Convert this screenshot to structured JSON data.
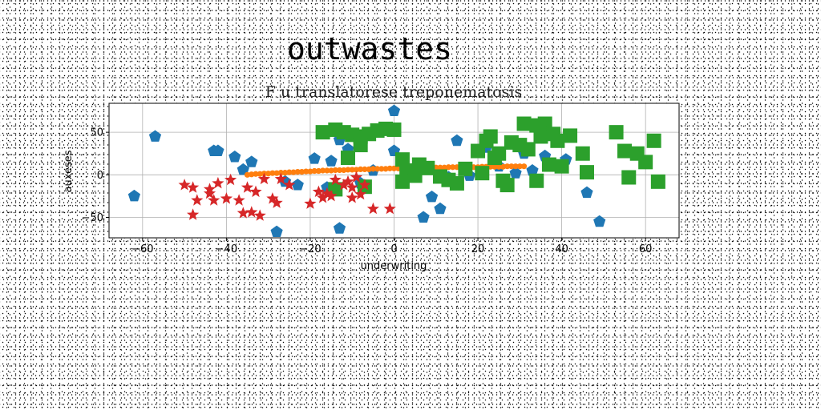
{
  "chart_data": {
    "type": "scatter",
    "suptitle": "outwastes",
    "title": "F u translatorese treponematosis",
    "xlabel": "underwriting",
    "ylabel": "auxeses",
    "xlim": [
      -68,
      68
    ],
    "ylim": [
      -74,
      84
    ],
    "xticks": [
      -60,
      -40,
      -20,
      0,
      20,
      40,
      60
    ],
    "yticks": [
      -50,
      0,
      50
    ],
    "xtick_labels": [
      "−60",
      "−40",
      "−20",
      "0",
      "20",
      "40",
      "60"
    ],
    "ytick_labels": [
      "−50",
      "0",
      "50"
    ],
    "grid": true,
    "series": [
      {
        "marker": "pentagon",
        "color": "#1f77b4",
        "points": [
          [
            -62,
            -25
          ],
          [
            -57,
            45
          ],
          [
            -43,
            28
          ],
          [
            -42,
            28
          ],
          [
            -38,
            21
          ],
          [
            -36,
            6
          ],
          [
            -34,
            15
          ],
          [
            -28,
            -67
          ],
          [
            -26,
            -8
          ],
          [
            -23,
            -12
          ],
          [
            -19,
            19
          ],
          [
            -16,
            -15
          ],
          [
            -15,
            16
          ],
          [
            -13,
            -63
          ],
          [
            -13,
            41
          ],
          [
            -11,
            30
          ],
          [
            -8,
            -10
          ],
          [
            -5,
            5
          ],
          [
            0,
            75
          ],
          [
            0,
            28
          ],
          [
            3,
            8
          ],
          [
            7,
            -50
          ],
          [
            9,
            -26
          ],
          [
            11,
            -40
          ],
          [
            13,
            -3
          ],
          [
            15,
            40
          ],
          [
            18,
            -1
          ],
          [
            22,
            32
          ],
          [
            25,
            10
          ],
          [
            29,
            2
          ],
          [
            31,
            25
          ],
          [
            33,
            5
          ],
          [
            36,
            22
          ],
          [
            41,
            18
          ],
          [
            46,
            -21
          ],
          [
            49,
            -55
          ]
        ]
      },
      {
        "marker": "circle",
        "color": "#ff7f0e",
        "points": [
          [
            -35,
            0
          ],
          [
            -34,
            0.5
          ],
          [
            -33,
            1
          ],
          [
            -32,
            1
          ],
          [
            -31,
            1.5
          ],
          [
            -30,
            1.5
          ],
          [
            -29,
            2
          ],
          [
            -28,
            2
          ],
          [
            -27,
            2.5
          ],
          [
            -26,
            2.5
          ],
          [
            -25,
            3
          ],
          [
            -24,
            3
          ],
          [
            -23,
            3.5
          ],
          [
            -22,
            3.5
          ],
          [
            -21,
            4
          ],
          [
            -20,
            4
          ],
          [
            -19,
            4.5
          ],
          [
            -18,
            4.5
          ],
          [
            -17,
            5
          ],
          [
            -16,
            5
          ],
          [
            -15,
            5
          ],
          [
            -14,
            5.5
          ],
          [
            -13,
            5.5
          ],
          [
            -12,
            5.5
          ],
          [
            -11,
            6
          ],
          [
            -10,
            6
          ],
          [
            -9,
            6
          ],
          [
            -8,
            6.5
          ],
          [
            -7,
            6.5
          ],
          [
            -6,
            6.5
          ],
          [
            -5,
            7
          ],
          [
            -4,
            7
          ],
          [
            -3,
            7
          ],
          [
            -2,
            7
          ],
          [
            -1,
            7.5
          ],
          [
            0,
            7.5
          ],
          [
            1,
            7.5
          ],
          [
            2,
            7.5
          ],
          [
            3,
            8
          ],
          [
            4,
            8
          ],
          [
            5,
            8
          ],
          [
            6,
            8
          ],
          [
            7,
            8
          ],
          [
            8,
            8.5
          ],
          [
            9,
            8.5
          ],
          [
            10,
            8.5
          ],
          [
            11,
            8.5
          ],
          [
            12,
            8.5
          ],
          [
            13,
            9
          ],
          [
            14,
            9
          ],
          [
            15,
            9
          ],
          [
            16,
            9
          ],
          [
            17,
            9
          ],
          [
            18,
            9
          ],
          [
            19,
            9
          ],
          [
            20,
            9
          ],
          [
            21,
            9.5
          ],
          [
            22,
            9.5
          ],
          [
            23,
            9.5
          ],
          [
            24,
            9.5
          ],
          [
            25,
            9.5
          ],
          [
            26,
            9.5
          ],
          [
            27,
            10
          ],
          [
            28,
            10
          ],
          [
            29,
            10
          ],
          [
            30,
            10
          ],
          [
            31,
            10
          ]
        ]
      },
      {
        "marker": "square",
        "color": "#2ca02c",
        "points": [
          [
            -17,
            50
          ],
          [
            -14,
            53
          ],
          [
            -12,
            50
          ],
          [
            -10,
            47
          ],
          [
            -8,
            45
          ],
          [
            -6,
            48
          ],
          [
            -4,
            52
          ],
          [
            -2,
            54
          ],
          [
            0,
            53
          ],
          [
            -11,
            20
          ],
          [
            -8,
            35
          ],
          [
            2,
            18
          ],
          [
            3,
            5
          ],
          [
            5,
            -1
          ],
          [
            6,
            12
          ],
          [
            8,
            8
          ],
          [
            11,
            -2
          ],
          [
            13,
            -6
          ],
          [
            15,
            -10
          ],
          [
            17,
            7
          ],
          [
            20,
            28
          ],
          [
            21,
            2
          ],
          [
            22,
            40
          ],
          [
            23,
            45
          ],
          [
            24,
            20
          ],
          [
            25,
            25
          ],
          [
            26,
            -7
          ],
          [
            27,
            -12
          ],
          [
            28,
            38
          ],
          [
            30,
            35
          ],
          [
            31,
            60
          ],
          [
            32,
            30
          ],
          [
            34,
            58
          ],
          [
            35,
            45
          ],
          [
            36,
            60
          ],
          [
            37,
            12
          ],
          [
            38,
            48
          ],
          [
            39,
            40
          ],
          [
            40,
            10
          ],
          [
            42,
            46
          ],
          [
            45,
            25
          ],
          [
            46,
            3
          ],
          [
            53,
            50
          ],
          [
            55,
            28
          ],
          [
            56,
            -3
          ],
          [
            58,
            25
          ],
          [
            60,
            15
          ],
          [
            62,
            40
          ],
          [
            63,
            -8
          ],
          [
            34,
            -7
          ],
          [
            -14,
            -17
          ],
          [
            -7,
            -14
          ],
          [
            2,
            -8
          ]
        ]
      },
      {
        "marker": "star",
        "color": "#d62728",
        "points": [
          [
            -50,
            -12
          ],
          [
            -48,
            -15
          ],
          [
            -48,
            -47
          ],
          [
            -47,
            -30
          ],
          [
            -44,
            -17
          ],
          [
            -44,
            -22
          ],
          [
            -43,
            -30
          ],
          [
            -42,
            -10
          ],
          [
            -40,
            -28
          ],
          [
            -39,
            -6
          ],
          [
            -37,
            -30
          ],
          [
            -36,
            -45
          ],
          [
            -35,
            -15
          ],
          [
            -34,
            -44
          ],
          [
            -33,
            -20
          ],
          [
            -32,
            -48
          ],
          [
            -31,
            -5
          ],
          [
            -29,
            -28
          ],
          [
            -28,
            -33
          ],
          [
            -27,
            -5
          ],
          [
            -25,
            -12
          ],
          [
            -20,
            -34
          ],
          [
            -18,
            -20
          ],
          [
            -17,
            -27
          ],
          [
            -16,
            -22
          ],
          [
            -15,
            -25
          ],
          [
            -14,
            -6
          ],
          [
            -12,
            -12
          ],
          [
            -11,
            -8
          ],
          [
            -10,
            -15
          ],
          [
            -10,
            -27
          ],
          [
            -9,
            -3
          ],
          [
            -8,
            -23
          ],
          [
            -7,
            -12
          ],
          [
            -5,
            -40
          ],
          [
            -1,
            -40
          ]
        ]
      }
    ]
  }
}
